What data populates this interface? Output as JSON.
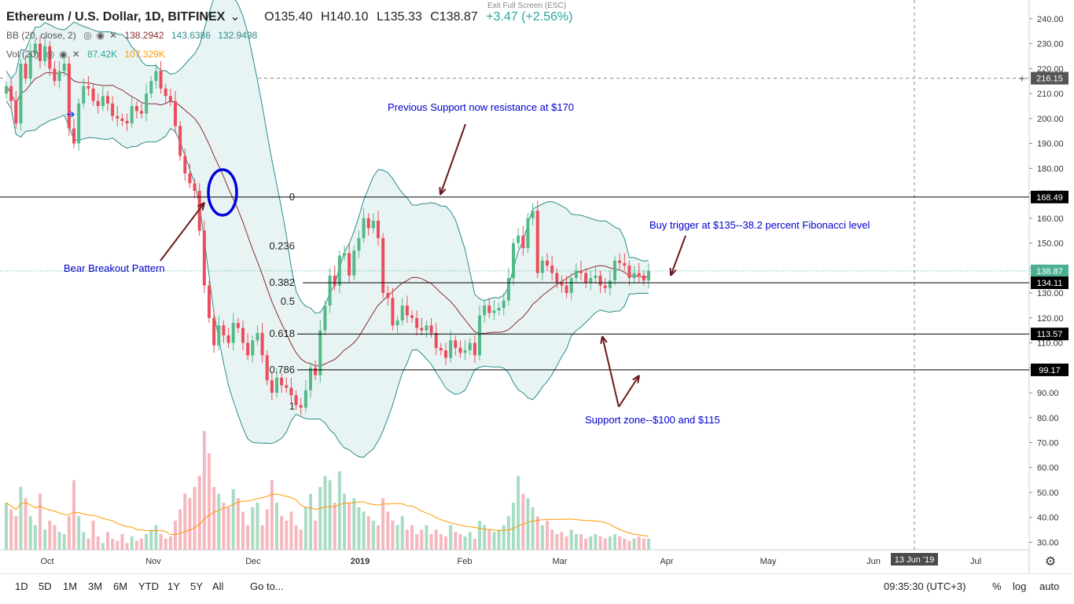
{
  "header": {
    "title": "Ethereum / U.S. Dollar, 1D, BITFINEX",
    "open": "O135.40",
    "high": "H140.10",
    "low": "L135.33",
    "close": "C138.87",
    "change": "+3.47 (+2.56%)",
    "exit_full_screen": "Exit Full Screen (ESC)"
  },
  "indicators": {
    "bb_label": "BB (20, close, 2)",
    "bb_v1": "138.2942",
    "bb_v2": "143.6386",
    "bb_v3": "132.9498",
    "vol_label": "Vol (20)",
    "vol_v1": "87.42K",
    "vol_v2": "107.329K"
  },
  "annotations": {
    "resistance": "Previous Support now resistance at $170",
    "buy_trigger": "Buy trigger at $135--38.2 percent Fibonacci level",
    "bear_breakout": "Bear Breakout Pattern",
    "support_zone": "Support zone--$100 and $115"
  },
  "toolbar": {
    "ranges": [
      "1D",
      "5D",
      "1M",
      "3M",
      "6M",
      "YTD",
      "1Y",
      "5Y",
      "All"
    ],
    "goto": "Go to...",
    "clock": "09:35:30 (UTC+3)",
    "percent": "%",
    "log": "log",
    "auto": "auto"
  },
  "chart_data": {
    "type": "candlestick",
    "title": "Ethereum / U.S. Dollar, 1D, BITFINEX",
    "y_ticks": [
      240,
      230,
      220,
      210,
      200,
      190,
      180,
      170,
      160,
      150,
      140,
      130,
      120,
      110,
      100,
      90,
      80,
      70,
      60,
      50,
      40,
      30
    ],
    "x_ticks": [
      "Oct",
      "Nov",
      "Dec",
      "2019",
      "Feb",
      "Mar",
      "Apr",
      "May",
      "Jun",
      "Jul"
    ],
    "crosshair_x_label": "13 Jun '19",
    "ylim": [
      27,
      245
    ],
    "price_tags": [
      {
        "label": "216.15",
        "value": 216.15,
        "color": "#555555"
      },
      {
        "label": "168.49",
        "value": 168.49,
        "color": "#000000"
      },
      {
        "label": "138.87",
        "value": 138.87,
        "color": "#4caf93"
      },
      {
        "label": "134.11",
        "value": 134.11,
        "color": "#000000"
      },
      {
        "label": "113.57",
        "value": 113.57,
        "color": "#000000"
      },
      {
        "label": "99.17",
        "value": 99.17,
        "color": "#000000"
      }
    ],
    "fib_levels": [
      {
        "label": "0",
        "value": 168.49
      },
      {
        "label": "0.236",
        "value": 148.8
      },
      {
        "label": "0.382",
        "value": 134.11
      },
      {
        "label": "0.5",
        "value": 126.5
      },
      {
        "label": "0.618",
        "value": 113.57
      },
      {
        "label": "0.786",
        "value": 99.17
      },
      {
        "label": "1",
        "value": 84.5
      }
    ],
    "colors": {
      "up": "#53b987",
      "down": "#eb4d5c",
      "bb_fill": "#e8f4f4",
      "bb_band": "#2d8b8b",
      "bb_mid": "#8b2d2d",
      "vol_ma": "#ff9800",
      "annotation": "#0000cc"
    },
    "closes": [
      213,
      207,
      198,
      222,
      216,
      226,
      230,
      223,
      229,
      220,
      215,
      219,
      222,
      196,
      190,
      206,
      213,
      212,
      207,
      205,
      209,
      206,
      201,
      200,
      199,
      198,
      205,
      203,
      202,
      210,
      215,
      219,
      212,
      209,
      207,
      197,
      185,
      178,
      174,
      171,
      155,
      133,
      120,
      109,
      117,
      113,
      110,
      118,
      116,
      110,
      105,
      111,
      114,
      105,
      95,
      90,
      96,
      93,
      92,
      89,
      85,
      84,
      91,
      100,
      97,
      115,
      125,
      137,
      133,
      145,
      146,
      137,
      147,
      152,
      160,
      156,
      159,
      152,
      130,
      128,
      117,
      119,
      125,
      121,
      120,
      116,
      115,
      117,
      114,
      108,
      107,
      104,
      111,
      108,
      106,
      107,
      110,
      105,
      121,
      125,
      122,
      123,
      124,
      127,
      136,
      150,
      153,
      148,
      160,
      163,
      138,
      143,
      141,
      138,
      134,
      133,
      130,
      136,
      139,
      138,
      134,
      136,
      137,
      133,
      132,
      135,
      143,
      142,
      141,
      136,
      138,
      137,
      135,
      138.87
    ],
    "volumes": [
      48,
      45,
      42,
      55,
      50,
      42,
      38,
      52,
      36,
      40,
      38,
      35,
      34,
      42,
      58,
      42,
      35,
      32,
      40,
      33,
      30,
      35,
      32,
      31,
      34,
      30,
      33,
      31,
      32,
      34,
      36,
      38,
      34,
      32,
      33,
      40,
      45,
      52,
      50,
      55,
      60,
      80,
      70,
      55,
      52,
      48,
      46,
      54,
      50,
      44,
      38,
      46,
      48,
      38,
      45,
      58,
      48,
      42,
      40,
      44,
      38,
      36,
      46,
      52,
      40,
      55,
      60,
      58,
      48,
      62,
      52,
      48,
      50,
      46,
      44,
      42,
      40,
      38,
      50,
      44,
      40,
      38,
      42,
      36,
      38,
      34,
      36,
      38,
      34,
      36,
      34,
      33,
      38,
      35,
      34,
      33,
      35,
      32,
      40,
      38,
      36,
      35,
      36,
      38,
      42,
      48,
      60,
      52,
      50,
      46,
      42,
      38,
      40,
      36,
      34,
      35,
      33,
      36,
      34,
      34,
      32,
      33,
      34,
      33,
      32,
      33,
      34,
      33,
      32,
      31,
      32,
      33,
      32,
      32
    ]
  }
}
